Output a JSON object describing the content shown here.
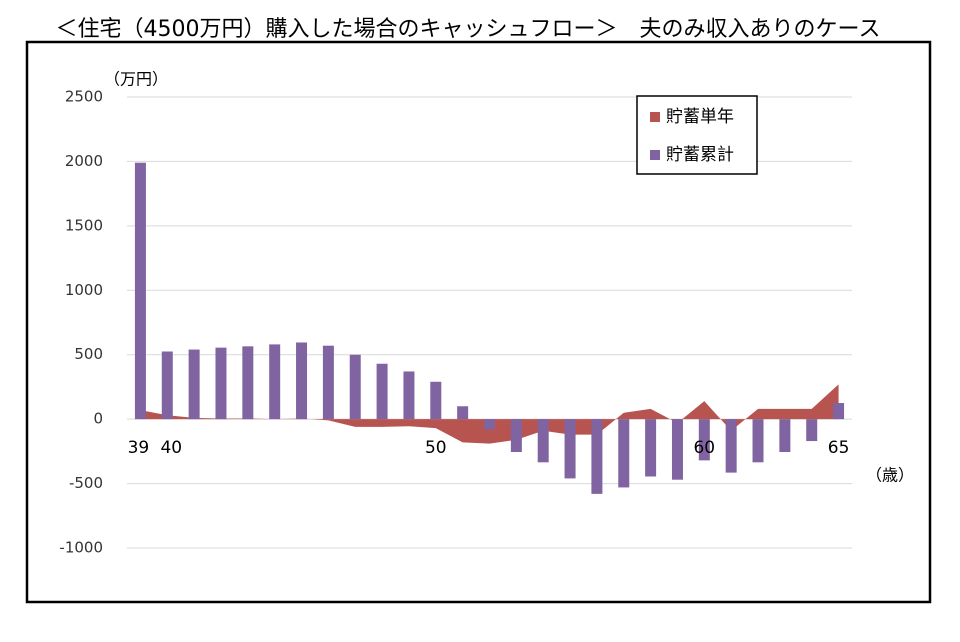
{
  "chart_data": {
    "type": "bar_area",
    "title": "＜住宅（4500万円）購入した場合のキャッシュフロー＞　夫のみ収入ありのケース",
    "y_unit_label": "（万円）",
    "x_unit_label": "（歳）",
    "categories": [
      39,
      40,
      null,
      null,
      null,
      null,
      null,
      null,
      null,
      null,
      null,
      50,
      null,
      null,
      null,
      null,
      null,
      null,
      null,
      null,
      null,
      60,
      null,
      null,
      null,
      null,
      65
    ],
    "series": [
      {
        "name": "貯蓄単年",
        "kind": "area",
        "color": "#b85450",
        "values": [
          70,
          30,
          10,
          5,
          5,
          0,
          5,
          -10,
          -60,
          -60,
          -55,
          -70,
          -180,
          -190,
          -160,
          -90,
          -120,
          -120,
          50,
          80,
          -30,
          140,
          -90,
          80,
          80,
          80,
          270
        ]
      },
      {
        "name": "貯蓄累計",
        "kind": "bar",
        "color": "#8064a2",
        "values": [
          1990,
          525,
          540,
          555,
          565,
          580,
          595,
          570,
          500,
          430,
          370,
          290,
          100,
          -80,
          -255,
          -335,
          -460,
          -580,
          -530,
          -445,
          -470,
          -320,
          -415,
          -335,
          -255,
          -170,
          125
        ]
      }
    ],
    "ylim": [
      -1000,
      2500
    ],
    "yticks": [
      -1000,
      -500,
      0,
      500,
      1000,
      1500,
      2000,
      2500
    ],
    "grid": true,
    "legend": "upper right"
  }
}
